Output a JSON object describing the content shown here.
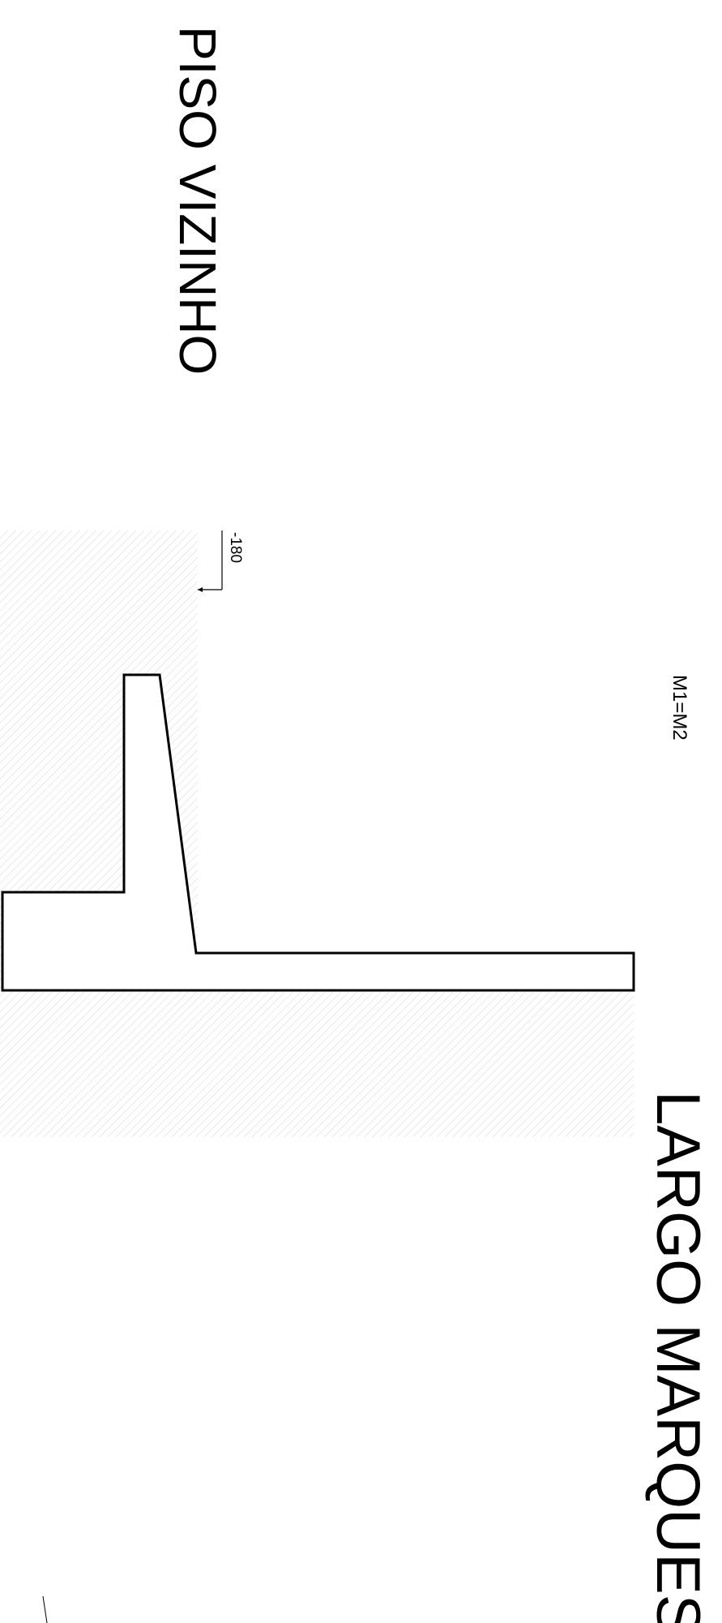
{
  "drawing": {
    "labels": {
      "neighbor": "PISO VIZINHO",
      "street": "LARGO MARQUES",
      "wall_note": "M1=M2",
      "level_mark": "-180"
    },
    "colors": {
      "ink": "#000000",
      "hatch": "#d6d6d6",
      "background": "#ffffff"
    }
  }
}
